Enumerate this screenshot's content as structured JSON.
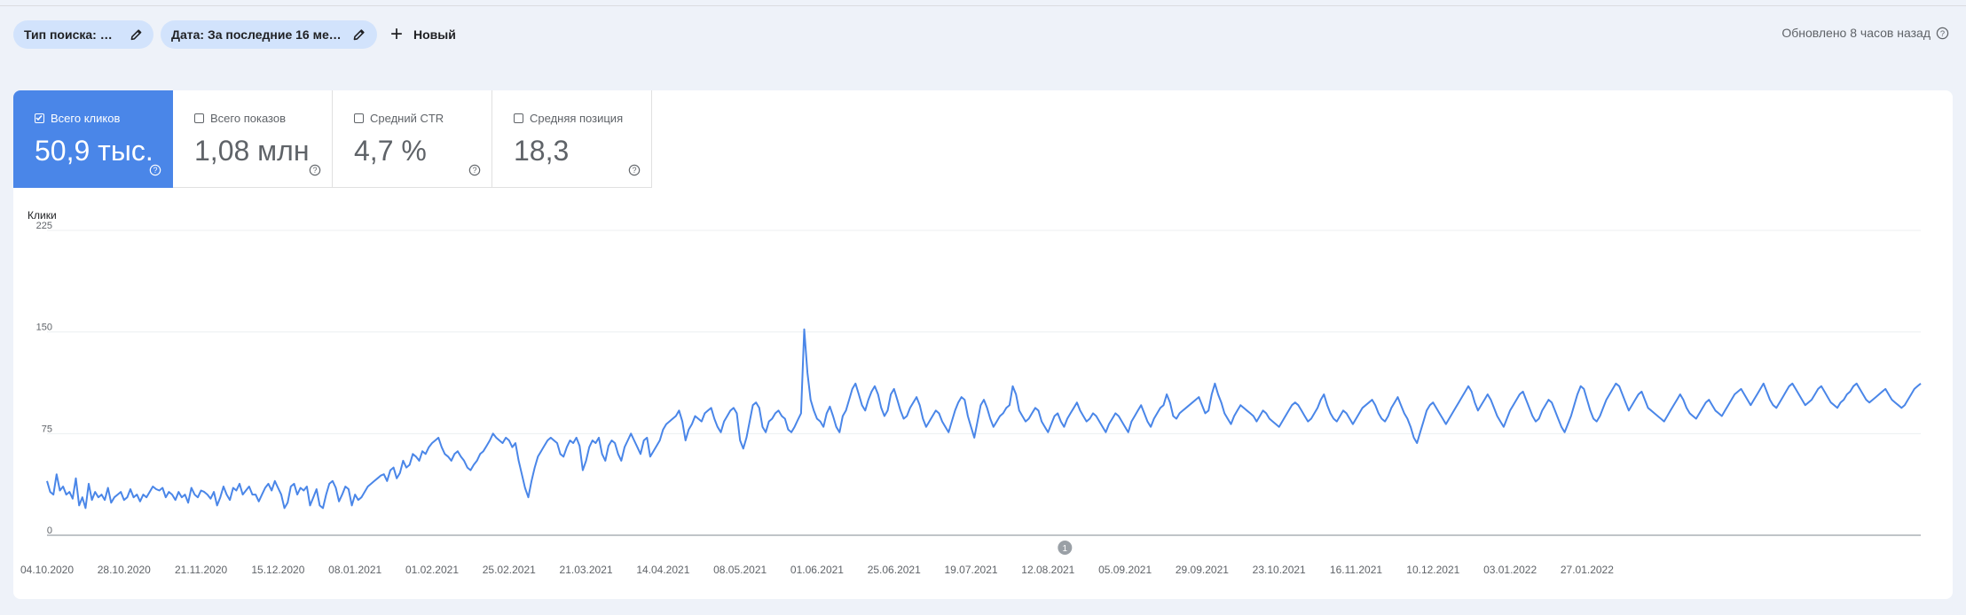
{
  "filters": {
    "search_type": "Тип поиска: Веб",
    "date_range": "Дата: За последние 16 мес..."
  },
  "new_label": "Новый",
  "updated_label": "Обновлено 8 часов назад",
  "metrics": [
    {
      "label": "Всего кликов",
      "value": "50,9 тыс.",
      "checked": true
    },
    {
      "label": "Всего показов",
      "value": "1,08 млн",
      "checked": false
    },
    {
      "label": "Средний CTR",
      "value": "4,7 %",
      "checked": false
    },
    {
      "label": "Средняя позиция",
      "value": "18,3",
      "checked": false
    }
  ],
  "colors": {
    "accent": "#4a86e8",
    "line": "#4a86e8",
    "chip": "#d2e3fc"
  },
  "chart_data": {
    "type": "line",
    "ylabel": "Клики",
    "ylim": [
      0,
      225
    ],
    "yticks": [
      0,
      75,
      150,
      225
    ],
    "grid": true,
    "annotation": "1",
    "annotation_date": "12.08.2021",
    "xlabels": [
      "04.10.2020",
      "28.10.2020",
      "21.11.2020",
      "15.12.2020",
      "08.01.2021",
      "01.02.2021",
      "25.02.2021",
      "21.03.2021",
      "14.04.2021",
      "08.05.2021",
      "01.06.2021",
      "25.06.2021",
      "19.07.2021",
      "12.08.2021",
      "05.09.2021",
      "29.09.2021",
      "23.10.2021",
      "16.11.2021",
      "10.12.2021",
      "03.01.2022",
      "27.01.2022"
    ],
    "series": [
      {
        "start": "04.10.2020",
        "values": [
          40,
          32,
          30,
          45,
          33,
          36,
          30,
          32,
          27,
          42,
          22,
          28,
          20,
          38,
          26,
          32,
          28,
          30,
          26,
          35,
          24,
          28,
          30,
          32,
          26,
          28,
          34,
          28,
          30,
          25,
          30,
          28,
          32,
          36,
          34,
          33,
          35,
          28,
          32,
          30,
          26,
          32,
          28,
          30,
          24,
          35,
          30,
          28,
          33,
          32,
          30,
          27,
          32,
          22,
          28,
          36,
          30,
          26,
          35,
          33,
          38,
          30,
          33,
          36,
          30,
          30,
          25,
          30,
          35,
          38,
          33,
          40,
          35,
          30,
          20,
          24,
          36,
          38,
          30,
          35,
          33,
          36,
          22,
          28,
          34,
          22,
          20,
          30,
          38,
          40,
          35,
          25,
          30,
          36,
          34,
          22,
          30,
          26,
          28,
          32,
          36,
          38,
          40,
          42,
          44,
          45,
          40,
          48,
          50,
          42,
          46,
          55,
          50,
          52,
          60,
          58,
          55,
          62,
          60,
          65,
          68,
          70,
          72,
          65,
          60,
          58,
          55,
          60,
          62,
          58,
          55,
          50,
          48,
          52,
          55,
          60,
          62,
          66,
          70,
          75,
          72,
          70,
          68,
          72,
          70,
          65,
          68,
          55,
          45,
          35,
          28,
          40,
          50,
          58,
          62,
          66,
          70,
          72,
          70,
          68,
          60,
          58,
          65,
          70,
          68,
          72,
          66,
          48,
          55,
          65,
          70,
          68,
          72,
          60,
          55,
          66,
          70,
          68,
          60,
          55,
          65,
          70,
          75,
          70,
          65,
          60,
          70,
          72,
          58,
          62,
          66,
          70,
          78,
          82,
          84,
          86,
          88,
          92,
          84,
          70,
          78,
          82,
          88,
          86,
          84,
          90,
          92,
          94,
          86,
          80,
          76,
          84,
          88,
          92,
          94,
          90,
          70,
          64,
          72,
          84,
          96,
          98,
          94,
          80,
          76,
          84,
          86,
          90,
          92,
          88,
          86,
          78,
          76,
          80,
          85,
          90,
          152,
          120,
          100,
          92,
          86,
          84,
          80,
          90,
          95,
          88,
          80,
          76,
          88,
          92,
          100,
          108,
          112,
          104,
          96,
          92,
          100,
          106,
          110,
          104,
          94,
          88,
          92,
          104,
          108,
          100,
          92,
          86,
          88,
          94,
          98,
          102,
          96,
          86,
          80,
          84,
          88,
          92,
          90,
          84,
          80,
          76,
          84,
          92,
          98,
          102,
          100,
          88,
          80,
          72,
          84,
          96,
          100,
          94,
          86,
          80,
          84,
          88,
          90,
          94,
          96,
          110,
          104,
          92,
          88,
          84,
          86,
          90,
          94,
          92,
          84,
          80,
          76,
          82,
          88,
          90,
          84,
          80,
          86,
          90,
          94,
          98,
          92,
          88,
          84,
          86,
          90,
          88,
          84,
          80,
          76,
          82,
          86,
          90,
          88,
          84,
          80,
          76,
          84,
          88,
          92,
          96,
          90,
          84,
          80,
          86,
          90,
          94,
          96,
          104,
          98,
          88,
          86,
          90,
          92,
          94,
          96,
          98,
          100,
          102,
          96,
          90,
          92,
          104,
          112,
          104,
          98,
          90,
          86,
          82,
          88,
          92,
          96,
          94,
          92,
          90,
          88,
          84,
          88,
          92,
          90,
          86,
          84,
          82,
          80,
          84,
          88,
          92,
          96,
          98,
          96,
          92,
          88,
          84,
          86,
          90,
          94,
          100,
          104,
          96,
          90,
          86,
          84,
          88,
          92,
          90,
          86,
          82,
          86,
          90,
          94,
          96,
          98,
          100,
          96,
          90,
          86,
          84,
          88,
          94,
          98,
          102,
          96,
          90,
          86,
          80,
          72,
          68,
          76,
          84,
          92,
          96,
          98,
          94,
          90,
          86,
          82,
          86,
          90,
          94,
          98,
          102,
          106,
          110,
          106,
          98,
          92,
          96,
          100,
          104,
          100,
          94,
          88,
          84,
          80,
          86,
          92,
          96,
          100,
          104,
          106,
          100,
          94,
          88,
          84,
          86,
          92,
          96,
          100,
          98,
          92,
          86,
          80,
          76,
          82,
          88,
          96,
          104,
          110,
          108,
          100,
          92,
          86,
          84,
          88,
          94,
          100,
          104,
          108,
          112,
          110,
          104,
          98,
          92,
          96,
          100,
          104,
          106,
          100,
          94,
          92,
          90,
          88,
          86,
          84,
          88,
          92,
          96,
          100,
          104,
          100,
          94,
          90,
          88,
          86,
          90,
          94,
          98,
          100,
          96,
          92,
          90,
          88,
          92,
          96,
          100,
          104,
          106,
          108,
          104,
          100,
          96,
          100,
          104,
          108,
          112,
          106,
          100,
          96,
          94,
          98,
          102,
          106,
          110,
          112,
          108,
          104,
          100,
          96,
          98,
          100,
          104,
          108,
          110,
          106,
          102,
          98,
          96,
          94,
          98,
          100,
          104,
          106,
          110,
          112,
          108,
          104,
          100,
          98,
          100,
          102,
          104,
          106,
          108,
          104,
          100,
          98,
          96,
          94,
          96,
          100,
          104,
          108,
          110,
          112
        ]
      }
    ]
  }
}
